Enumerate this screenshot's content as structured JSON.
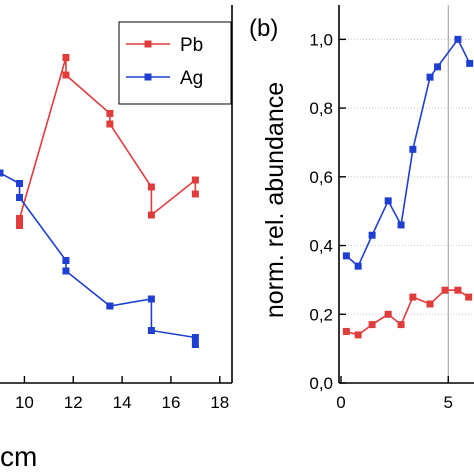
{
  "chart_data": [
    {
      "type": "line",
      "panel_label": "",
      "xlabel": "cm",
      "ylabel": "",
      "xlim": [
        9,
        18.5
      ],
      "ylim": [
        0,
        1.08
      ],
      "xticks": [
        "10",
        "12",
        "14",
        "16",
        "18"
      ],
      "grid": false,
      "legend_position": "top-right",
      "series": [
        {
          "name": "Pb",
          "color": "#e03c3c",
          "x": [
            9.8,
            9.8,
            11.7,
            11.7,
            13.5,
            13.5,
            15.2,
            15.2,
            17.0,
            17.0
          ],
          "y": [
            0.45,
            0.47,
            0.93,
            0.88,
            0.77,
            0.74,
            0.56,
            0.48,
            0.58,
            0.54
          ]
        },
        {
          "name": "Ag",
          "color": "#1f3fd1",
          "x": [
            9.0,
            9.8,
            9.8,
            11.7,
            11.7,
            13.5,
            13.5,
            15.2,
            15.2,
            17.0,
            17.0
          ],
          "y": [
            0.6,
            0.57,
            0.53,
            0.35,
            0.32,
            0.22,
            0.22,
            0.24,
            0.15,
            0.13,
            0.11
          ]
        }
      ]
    },
    {
      "type": "line",
      "panel_label": "(b)",
      "xlabel": "",
      "ylabel": "norm. rel. abundance",
      "xlim": [
        0,
        6.2
      ],
      "ylim": [
        0,
        1.1
      ],
      "xticks": [
        "0",
        "5"
      ],
      "yticks": [
        "0,0",
        "0,2",
        "0,4",
        "0,6",
        "0,8",
        "1,0"
      ],
      "grid": true,
      "legend_position": "none",
      "series": [
        {
          "name": "",
          "color": "#1f3fd1",
          "x": [
            0.25,
            0.8,
            1.45,
            2.2,
            2.8,
            3.35,
            4.15,
            4.5,
            5.45,
            6.0
          ],
          "y": [
            0.37,
            0.34,
            0.43,
            0.53,
            0.46,
            0.68,
            0.89,
            0.92,
            1.0,
            0.93
          ]
        },
        {
          "name": "",
          "color": "#e03c3c",
          "x": [
            0.25,
            0.8,
            1.45,
            2.2,
            2.8,
            3.35,
            4.15,
            4.85,
            5.45,
            5.95
          ],
          "y": [
            0.15,
            0.14,
            0.17,
            0.2,
            0.17,
            0.25,
            0.23,
            0.27,
            0.27,
            0.25
          ]
        }
      ]
    }
  ]
}
